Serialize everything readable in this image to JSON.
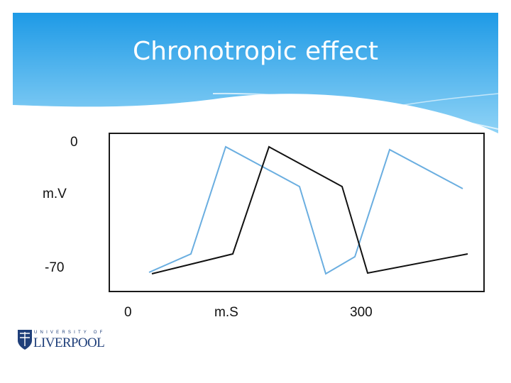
{
  "slide": {
    "title": "Chronotropic effect",
    "y_ticks": [
      "0",
      "m.V",
      "-70"
    ],
    "x_ticks": [
      "0",
      "m.S",
      "300"
    ],
    "logo": {
      "top_text": "UNIVERSITY OF",
      "main_text": "LIVERPOOL",
      "icon": "university-crest-icon"
    },
    "colors": {
      "header_top": "#1e9ae6",
      "header_bottom": "#7ccaf3",
      "trace_fast": "#6aaee0",
      "trace_normal": "#111111",
      "logo": "#1f3f7a"
    }
  }
}
